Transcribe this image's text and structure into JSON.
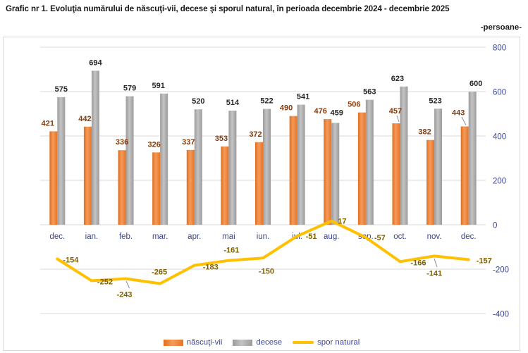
{
  "title": "Grafic nr 1. Evoluţia numărului de născuţi-vii, decese şi sporul natural, în perioada decembrie 2024 - decembrie 2025",
  "unit_label": "-persoane-",
  "chart_data": {
    "type": "bar",
    "title": "Evoluţia numărului de născuţi-vii, decese şi sporul natural, decembrie 2024 - decembrie 2025",
    "categories": [
      "dec.",
      "ian.",
      "feb.",
      "mar.",
      "apr.",
      "mai",
      "iun.",
      "iul.",
      "aug.",
      "sep.",
      "oct.",
      "nov.",
      "dec."
    ],
    "series": [
      {
        "name": "născuţi-vii",
        "type": "bar",
        "color": "#ED7D31",
        "label_color": "#843C0C",
        "values": [
          421,
          442,
          336,
          326,
          337,
          353,
          372,
          490,
          476,
          506,
          457,
          382,
          443
        ]
      },
      {
        "name": "decese",
        "type": "bar",
        "color": "#A6A6A6",
        "label_color": "#262626",
        "values": [
          575,
          694,
          579,
          591,
          520,
          514,
          522,
          541,
          459,
          563,
          623,
          523,
          600
        ]
      },
      {
        "name": "spor natural",
        "type": "line",
        "color": "#FFC000",
        "label_color": "#7F6000",
        "values": [
          -154,
          -252,
          -243,
          -265,
          -183,
          -161,
          -150,
          -51,
          17,
          -57,
          -166,
          -141,
          -157
        ]
      }
    ],
    "ylim": [
      -400,
      800
    ],
    "yticks": [
      800,
      600,
      400,
      200,
      0,
      -200,
      -400
    ],
    "grid": true,
    "legend_position": "bottom",
    "axis_color": "#3C4691",
    "gridline_color": "#D9D9D9"
  }
}
